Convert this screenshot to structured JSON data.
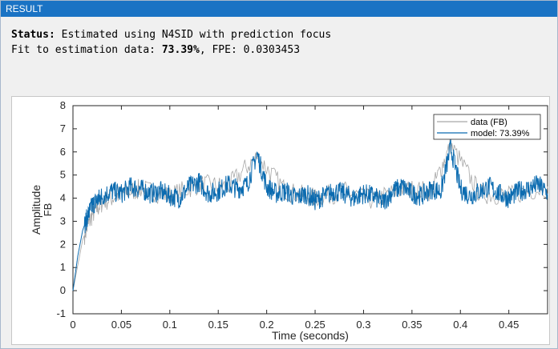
{
  "panel": {
    "title": "RESULT"
  },
  "status": {
    "label": "Status:",
    "text": "Estimated using N4SID with prediction focus",
    "fit_label": "Fit to estimation data:",
    "fit_value": "73.39%",
    "fpe_label": ", FPE: 0.0303453"
  },
  "colors": {
    "header_bg": "#1a73c4",
    "data_line": "#a6a6a6",
    "model_line": "#0b6bb0"
  },
  "chart_data": {
    "type": "line",
    "xlabel": "Time (seconds)",
    "ylabel": "Amplitude",
    "ylabel_sub": "FB",
    "xlim": [
      0,
      0.49
    ],
    "ylim": [
      -1,
      8
    ],
    "xticks": [
      0,
      0.05,
      0.1,
      0.15,
      0.2,
      0.25,
      0.3,
      0.35,
      0.4,
      0.45
    ],
    "xtick_labels": [
      "0",
      "0.05",
      "0.1",
      "0.15",
      "0.2",
      "0.25",
      "0.3",
      "0.35",
      "0.4",
      "0.45"
    ],
    "yticks": [
      -1,
      0,
      1,
      2,
      3,
      4,
      5,
      6,
      7,
      8
    ],
    "ytick_labels": [
      "-1",
      "0",
      "1",
      "2",
      "3",
      "4",
      "5",
      "6",
      "7",
      "8"
    ],
    "legend_position": "top-right",
    "series": [
      {
        "name": "data (FB)",
        "x": [
          0,
          0.01,
          0.02,
          0.03,
          0.05,
          0.07,
          0.1,
          0.13,
          0.16,
          0.19,
          0.22,
          0.25,
          0.28,
          0.31,
          0.34,
          0.37,
          0.39,
          0.42,
          0.45,
          0.49
        ],
        "y": [
          0,
          2.2,
          3.3,
          3.8,
          4.2,
          4.4,
          4.1,
          4.6,
          4.5,
          5.8,
          4.3,
          4.0,
          4.3,
          3.9,
          4.4,
          4.3,
          6.3,
          4.2,
          4.1,
          4.5
        ]
      },
      {
        "name": "model: 73.39%",
        "x": [
          0,
          0.005,
          0.01,
          0.015,
          0.02,
          0.025,
          0.03,
          0.04,
          0.05,
          0.06,
          0.07,
          0.08,
          0.09,
          0.1,
          0.11,
          0.12,
          0.13,
          0.14,
          0.15,
          0.16,
          0.17,
          0.18,
          0.19,
          0.2,
          0.21,
          0.22,
          0.23,
          0.24,
          0.25,
          0.26,
          0.27,
          0.28,
          0.29,
          0.3,
          0.31,
          0.32,
          0.33,
          0.34,
          0.35,
          0.36,
          0.37,
          0.38,
          0.39,
          0.4,
          0.41,
          0.42,
          0.43,
          0.44,
          0.45,
          0.46,
          0.47,
          0.48,
          0.49
        ],
        "y": [
          0.0,
          1.5,
          2.6,
          3.2,
          3.7,
          3.9,
          4.1,
          4.3,
          4.2,
          4.5,
          4.4,
          4.2,
          4.3,
          4.1,
          4.0,
          4.5,
          4.7,
          4.2,
          4.3,
          4.6,
          4.4,
          4.6,
          5.9,
          4.5,
          4.2,
          4.3,
          4.0,
          4.2,
          3.9,
          4.1,
          4.3,
          4.2,
          4.0,
          4.2,
          4.1,
          3.8,
          4.3,
          4.5,
          4.2,
          4.1,
          4.4,
          4.3,
          6.2,
          4.4,
          4.1,
          4.3,
          4.5,
          4.2,
          4.0,
          4.3,
          4.4,
          4.6,
          4.2
        ]
      }
    ]
  }
}
